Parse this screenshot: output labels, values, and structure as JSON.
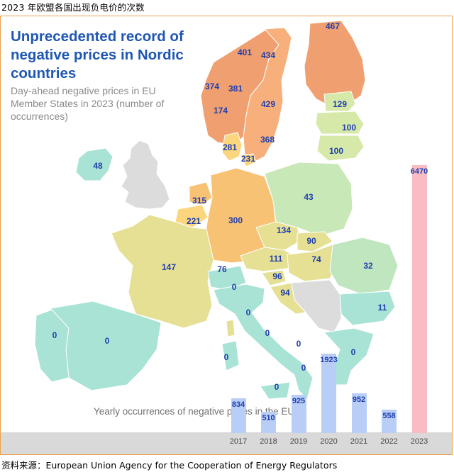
{
  "caption_top": "2023 年欧盟各国出现负电价的次数",
  "caption_source": "资料来源：European Union Agency for the Cooperation of Energy Regulators",
  "map": {
    "title": "Unprecedented record of negative prices in Nordic countries",
    "subtitle": "Day-ahead negative prices in EU Member States in 2023 (number of occurrences)",
    "colors": {
      "highest": "#f0a070",
      "high": "#f7c274",
      "mid": "#fbd67e",
      "low_mid": "#e6e095",
      "low": "#d6e9a9",
      "lowest": "#a9e3d6",
      "non_eu": "#dcdcdc",
      "label": "#1f3fae",
      "title": "#1f57b3"
    },
    "values": {
      "finland": "467",
      "norway_north": "401",
      "sweden_north": "434",
      "norway_west": "374",
      "norway_central": "381",
      "norway_south": "174",
      "sweden_south": "429",
      "estonia": "129",
      "latvia": "100",
      "lithuania": "100",
      "denmark_west": "281",
      "denmark_east": "231",
      "sweden_se4": "368",
      "ireland": "48",
      "netherlands": "315",
      "belgium": "221",
      "germany": "300",
      "poland": "43",
      "czechia": "134",
      "slovakia": "90",
      "austria": "111",
      "hungary": "74",
      "romania": "32",
      "france": "147",
      "switzerland": "76",
      "slovenia": "96",
      "croatia": "94",
      "italy_north": "0",
      "italy_central_north": "0",
      "italy_central": "0",
      "italy_south": "0",
      "italy_calabria": "0",
      "sardinia": "0",
      "sicily": "0",
      "bulgaria": "11",
      "greece": "0",
      "portugal": "0",
      "spain": "0"
    }
  },
  "chart_data": {
    "type": "bar",
    "title": "Yearly occurrences of negative prices in the EU",
    "categories": [
      "2017",
      "2018",
      "2019",
      "2020",
      "2021",
      "2022",
      "2023"
    ],
    "values": [
      834,
      510,
      925,
      1923,
      952,
      558,
      6470
    ],
    "highlight_index": 6,
    "colors": {
      "bar": "#b8cef7",
      "highlight": "#f9bcc4",
      "label": "#1f3fae",
      "axis_band": "#d9d9d9"
    }
  }
}
